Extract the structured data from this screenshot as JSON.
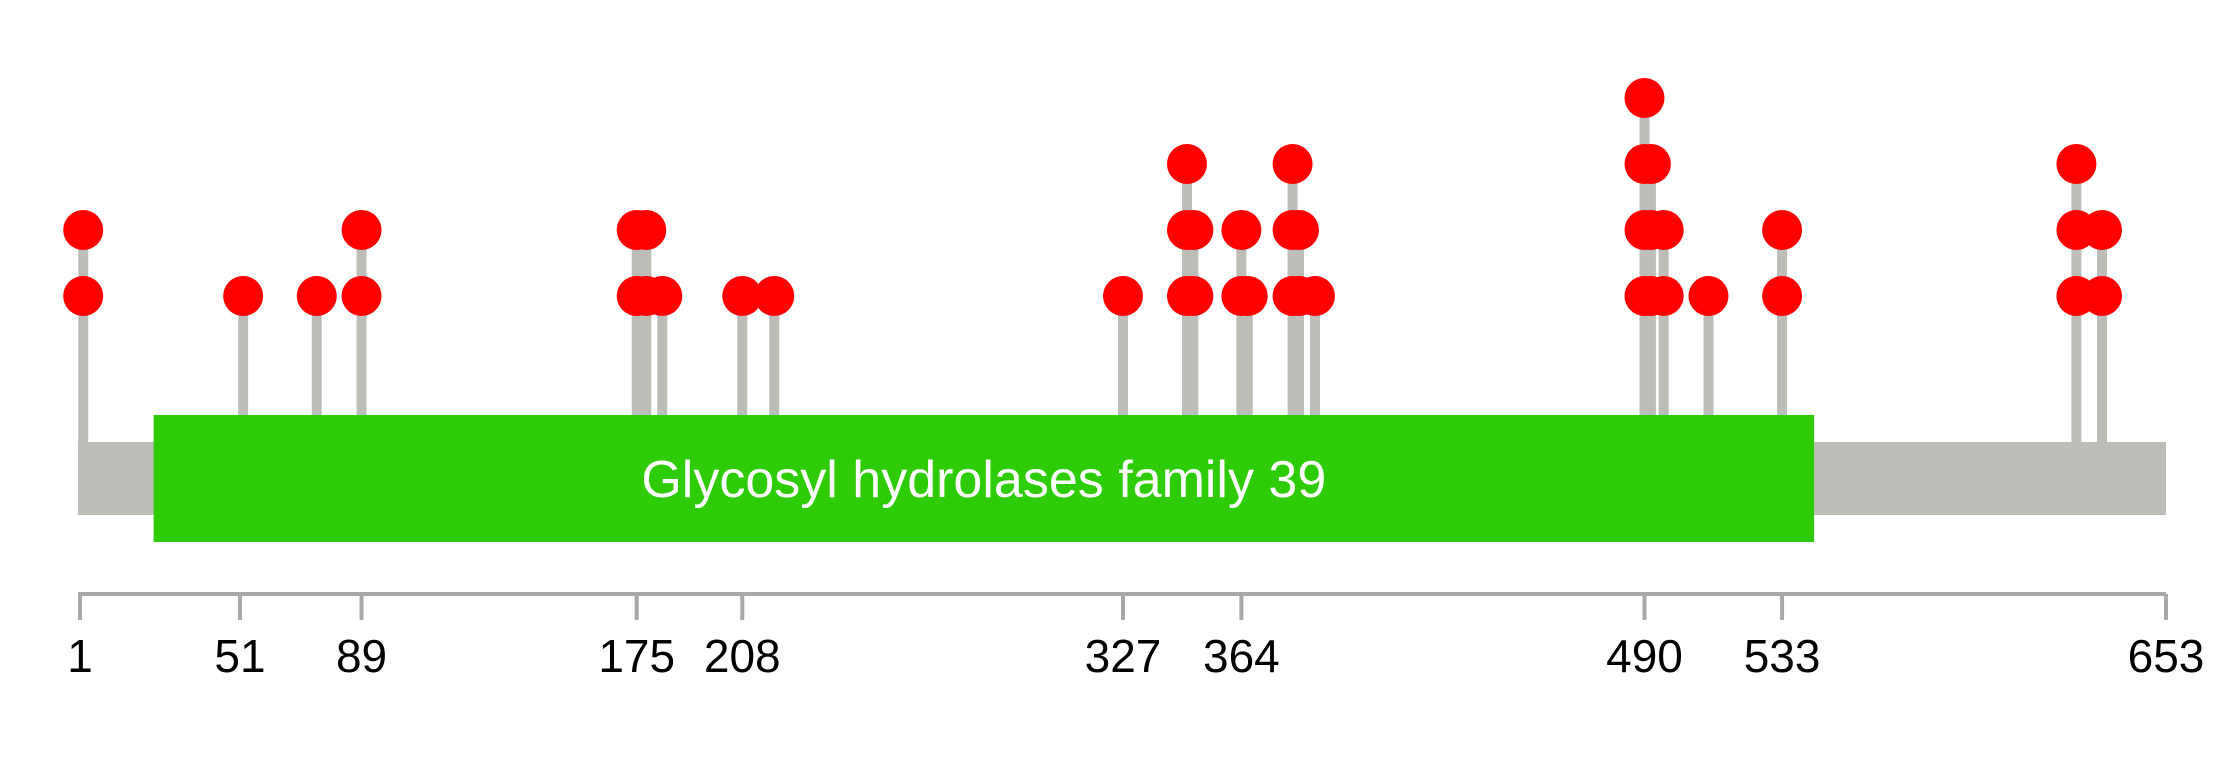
{
  "chart_data": {
    "type": "lollipop",
    "title": "",
    "xlabel": "",
    "ylabel": "",
    "protein_length": 653,
    "xlim": [
      1,
      653
    ],
    "tick_labels": [
      1,
      51,
      89,
      175,
      208,
      327,
      364,
      490,
      533,
      653
    ],
    "domain": {
      "name": "Glycosyl hydrolases family 39",
      "start": 24,
      "end": 543
    },
    "sites": [
      {
        "pos": 2,
        "count": 2
      },
      {
        "pos": 52,
        "count": 1
      },
      {
        "pos": 75,
        "count": 1
      },
      {
        "pos": 89,
        "count": 2
      },
      {
        "pos": 175,
        "count": 2
      },
      {
        "pos": 178,
        "count": 2
      },
      {
        "pos": 183,
        "count": 1
      },
      {
        "pos": 208,
        "count": 1
      },
      {
        "pos": 218,
        "count": 1
      },
      {
        "pos": 327,
        "count": 1
      },
      {
        "pos": 347,
        "count": 3
      },
      {
        "pos": 349,
        "count": 2
      },
      {
        "pos": 364,
        "count": 2
      },
      {
        "pos": 366,
        "count": 1
      },
      {
        "pos": 380,
        "count": 3
      },
      {
        "pos": 382,
        "count": 2
      },
      {
        "pos": 387,
        "count": 1
      },
      {
        "pos": 490,
        "count": 4
      },
      {
        "pos": 492,
        "count": 3
      },
      {
        "pos": 496,
        "count": 2
      },
      {
        "pos": 510,
        "count": 1
      },
      {
        "pos": 533,
        "count": 2
      },
      {
        "pos": 625,
        "count": 3
      },
      {
        "pos": 633,
        "count": 2
      }
    ],
    "colors": {
      "backbone": "#bdbdb8",
      "domain": "#2ecc06",
      "stem": "#bdbdb8",
      "head": "#ff0000",
      "axis": "#a8a8a8"
    }
  }
}
